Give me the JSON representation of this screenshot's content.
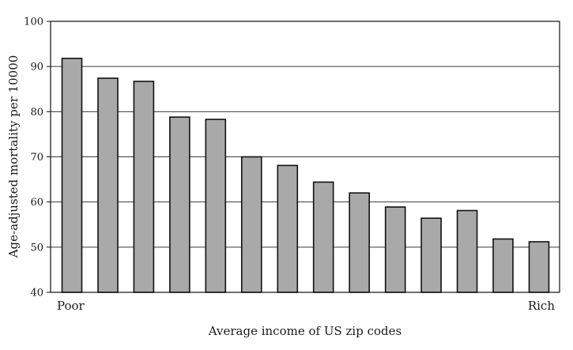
{
  "chart_data": {
    "type": "bar",
    "title": "",
    "xlabel": "Average income of US zip codes",
    "ylabel": "Age-adjusted mortality per 10000",
    "x_end_labels": {
      "left": "Poor",
      "right": "Rich"
    },
    "ylim": [
      40,
      100
    ],
    "yticks": [
      "40",
      "50",
      "60",
      "70",
      "80",
      "90",
      "100"
    ],
    "grid": true,
    "values": [
      91.8,
      87.4,
      86.7,
      78.8,
      78.3,
      70.0,
      68.1,
      64.4,
      62.0,
      58.9,
      56.4,
      58.1,
      51.8,
      51.2
    ],
    "colors": {
      "bar_fill": "#a9a9a9",
      "bar_stroke": "#111111",
      "grid": "#3a3a3a"
    }
  }
}
